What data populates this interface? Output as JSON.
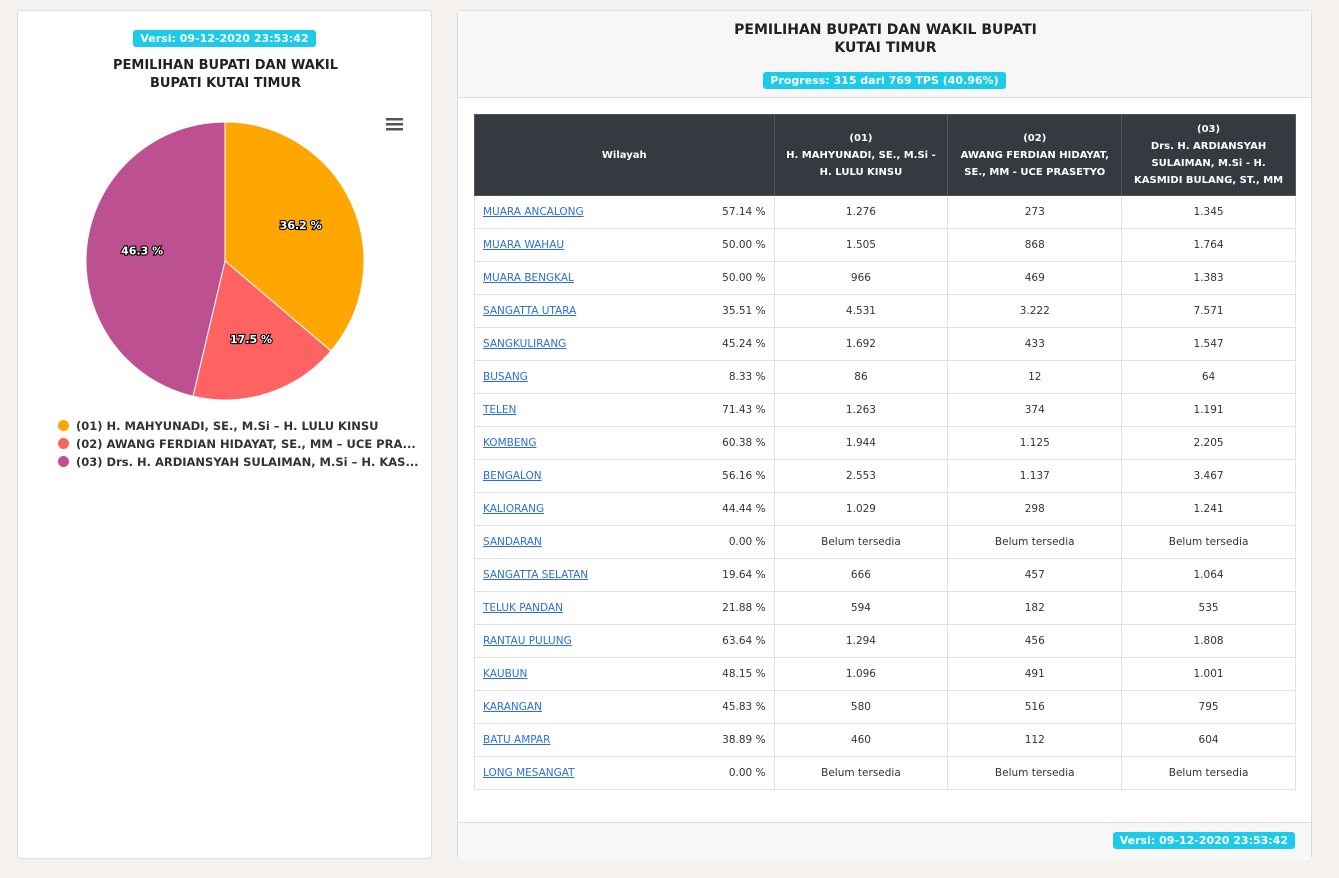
{
  "left_badge": "Versi: 09-12-2020 23:53:42",
  "chart_data": {
    "type": "pie",
    "title": "PEMILIHAN BUPATI DAN WAKIL BUPATI KUTAI TIMUR",
    "categories": [
      "(01) H. MAHYUNADI, SE., M.Si – H. LULU KINSU",
      "(02) AWANG FERDIAN HIDAYAT, SE., MM – UCE PRA...",
      "(03) Drs. H. ARDIANSYAH SULAIMAN, M.Si – H. KAS..."
    ],
    "values": [
      36.2,
      17.5,
      46.3
    ],
    "value_labels": [
      "36.2 %",
      "17.5 %",
      "46.3 %"
    ],
    "colors": [
      "#ffa600",
      "#ff6361",
      "#bc5090"
    ]
  },
  "panel": {
    "title": "PEMILIHAN BUPATI DAN WAKIL BUPATI KUTAI TIMUR",
    "progress": "Progress: 315 dari 769 TPS (40.96%)",
    "footer_badge": "Versi: 09-12-2020 23:53:42"
  },
  "table": {
    "headers": [
      {
        "name": "Wilayah"
      },
      {
        "number": "(01)",
        "name": "H. MAHYUNADI, SE., M.Si - H. LULU KINSU"
      },
      {
        "number": "(02)",
        "name": "AWANG FERDIAN HIDAYAT, SE., MM - UCE PRASETYO"
      },
      {
        "number": "(03)",
        "name": "Drs. H. ARDIANSYAH SULAIMAN, M.Si - H. KASMIDI BULANG, ST., MM"
      }
    ],
    "rows": [
      [
        "MUARA ANCALONG",
        "57.14 %",
        "1.276",
        "273",
        "1.345"
      ],
      [
        "MUARA WAHAU",
        "50.00 %",
        "1.505",
        "868",
        "1.764"
      ],
      [
        "MUARA BENGKAL",
        "50.00 %",
        "966",
        "469",
        "1.383"
      ],
      [
        "SANGATTA UTARA",
        "35.51 %",
        "4.531",
        "3.222",
        "7.571"
      ],
      [
        "SANGKULIRANG",
        "45.24 %",
        "1.692",
        "433",
        "1.547"
      ],
      [
        "BUSANG",
        "8.33 %",
        "86",
        "12",
        "64"
      ],
      [
        "TELEN",
        "71.43 %",
        "1.263",
        "374",
        "1.191"
      ],
      [
        "KOMBENG",
        "60.38 %",
        "1.944",
        "1.125",
        "2.205"
      ],
      [
        "BENGALON",
        "56.16 %",
        "2.553",
        "1.137",
        "3.467"
      ],
      [
        "KALIORANG",
        "44.44 %",
        "1.029",
        "298",
        "1.241"
      ],
      [
        "SANDARAN",
        "0.00 %",
        "Belum tersedia",
        "Belum tersedia",
        "Belum tersedia"
      ],
      [
        "SANGATTA SELATAN",
        "19.64 %",
        "666",
        "457",
        "1.064"
      ],
      [
        "TELUK PANDAN",
        "21.88 %",
        "594",
        "182",
        "535"
      ],
      [
        "RANTAU PULUNG",
        "63.64 %",
        "1.294",
        "456",
        "1.808"
      ],
      [
        "KAUBUN",
        "48.15 %",
        "1.096",
        "491",
        "1.001"
      ],
      [
        "KARANGAN",
        "45.83 %",
        "580",
        "516",
        "795"
      ],
      [
        "BATU AMPAR",
        "38.89 %",
        "460",
        "112",
        "604"
      ],
      [
        "LONG MESANGAT",
        "0.00 %",
        "Belum tersedia",
        "Belum tersedia",
        "Belum tersedia"
      ]
    ]
  }
}
